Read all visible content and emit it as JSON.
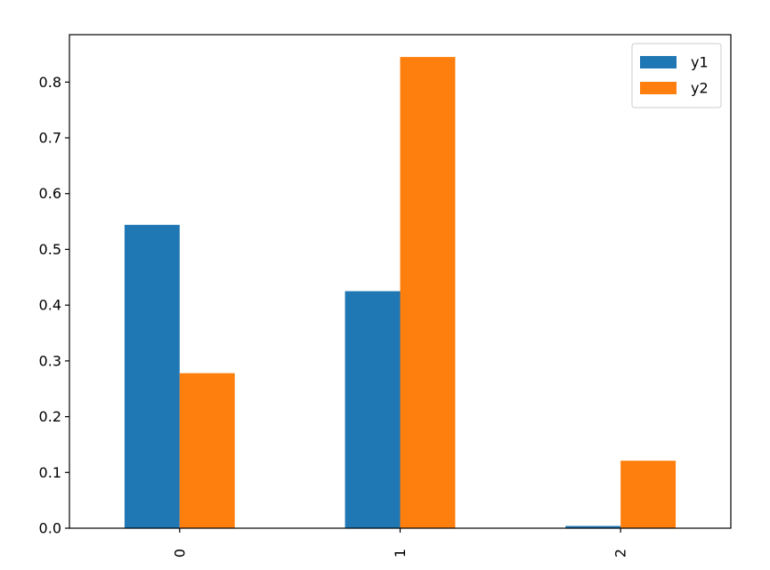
{
  "chart_data": {
    "type": "bar",
    "title": "",
    "xlabel": "",
    "ylabel": "",
    "categories": [
      "0",
      "1",
      "2"
    ],
    "series": [
      {
        "name": "y1",
        "color": "#1f77b4",
        "values": [
          0.544,
          0.425,
          0.004
        ]
      },
      {
        "name": "y2",
        "color": "#ff7f0e",
        "values": [
          0.278,
          0.845,
          0.121
        ]
      }
    ],
    "ylim": [
      0,
      0.885
    ],
    "yticks": [
      0.0,
      0.1,
      0.2,
      0.3,
      0.4,
      0.5,
      0.6,
      0.7,
      0.8
    ],
    "ytick_labels": [
      "0.0",
      "0.1",
      "0.2",
      "0.3",
      "0.4",
      "0.5",
      "0.6",
      "0.7",
      "0.8"
    ],
    "xtick_rotation": "vertical",
    "legend_position": "top-right",
    "grid": false
  }
}
